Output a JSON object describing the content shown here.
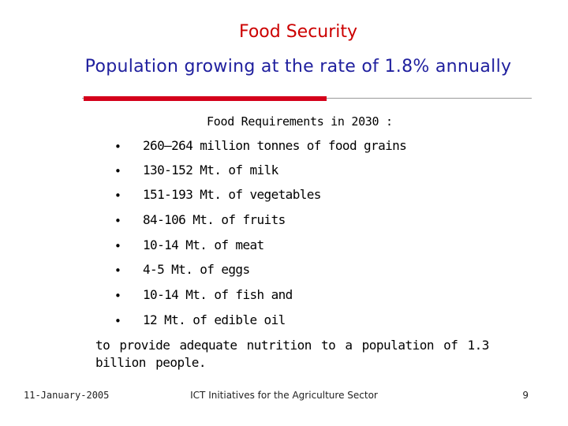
{
  "slide": {
    "title": "Food Security",
    "subtitle": "Population growing at the rate of 1.8% annually",
    "heading": "Food Requirements in 2030 :",
    "items": [
      {
        "bullet": "•",
        "text": "260–264 million tonnes of food grains"
      },
      {
        "bullet": "•",
        "text": "130-152 Mt. of milk"
      },
      {
        "bullet": "•",
        "text": "151-193 Mt. of vegetables"
      },
      {
        "bullet": "•",
        "text": "84-106 Mt. of fruits"
      },
      {
        "bullet": "•",
        "text": "10-14 Mt. of meat"
      },
      {
        "bullet": "•",
        "text": "4-5 Mt. of eggs"
      },
      {
        "bullet": "•",
        "text": "10-14 Mt. of fish and"
      },
      {
        "bullet": "•",
        "text": "12 Mt. of edible oil"
      }
    ],
    "note": "to provide adequate nutrition to a population of 1.3 billion people."
  },
  "footer": {
    "date": "11-January-2005",
    "center": "ICT Initiatives for the Agriculture Sector",
    "page": "9"
  },
  "colors": {
    "title": "#cc0000",
    "subtitle": "#1f1f9e",
    "accent_rule": "#d4001a"
  }
}
